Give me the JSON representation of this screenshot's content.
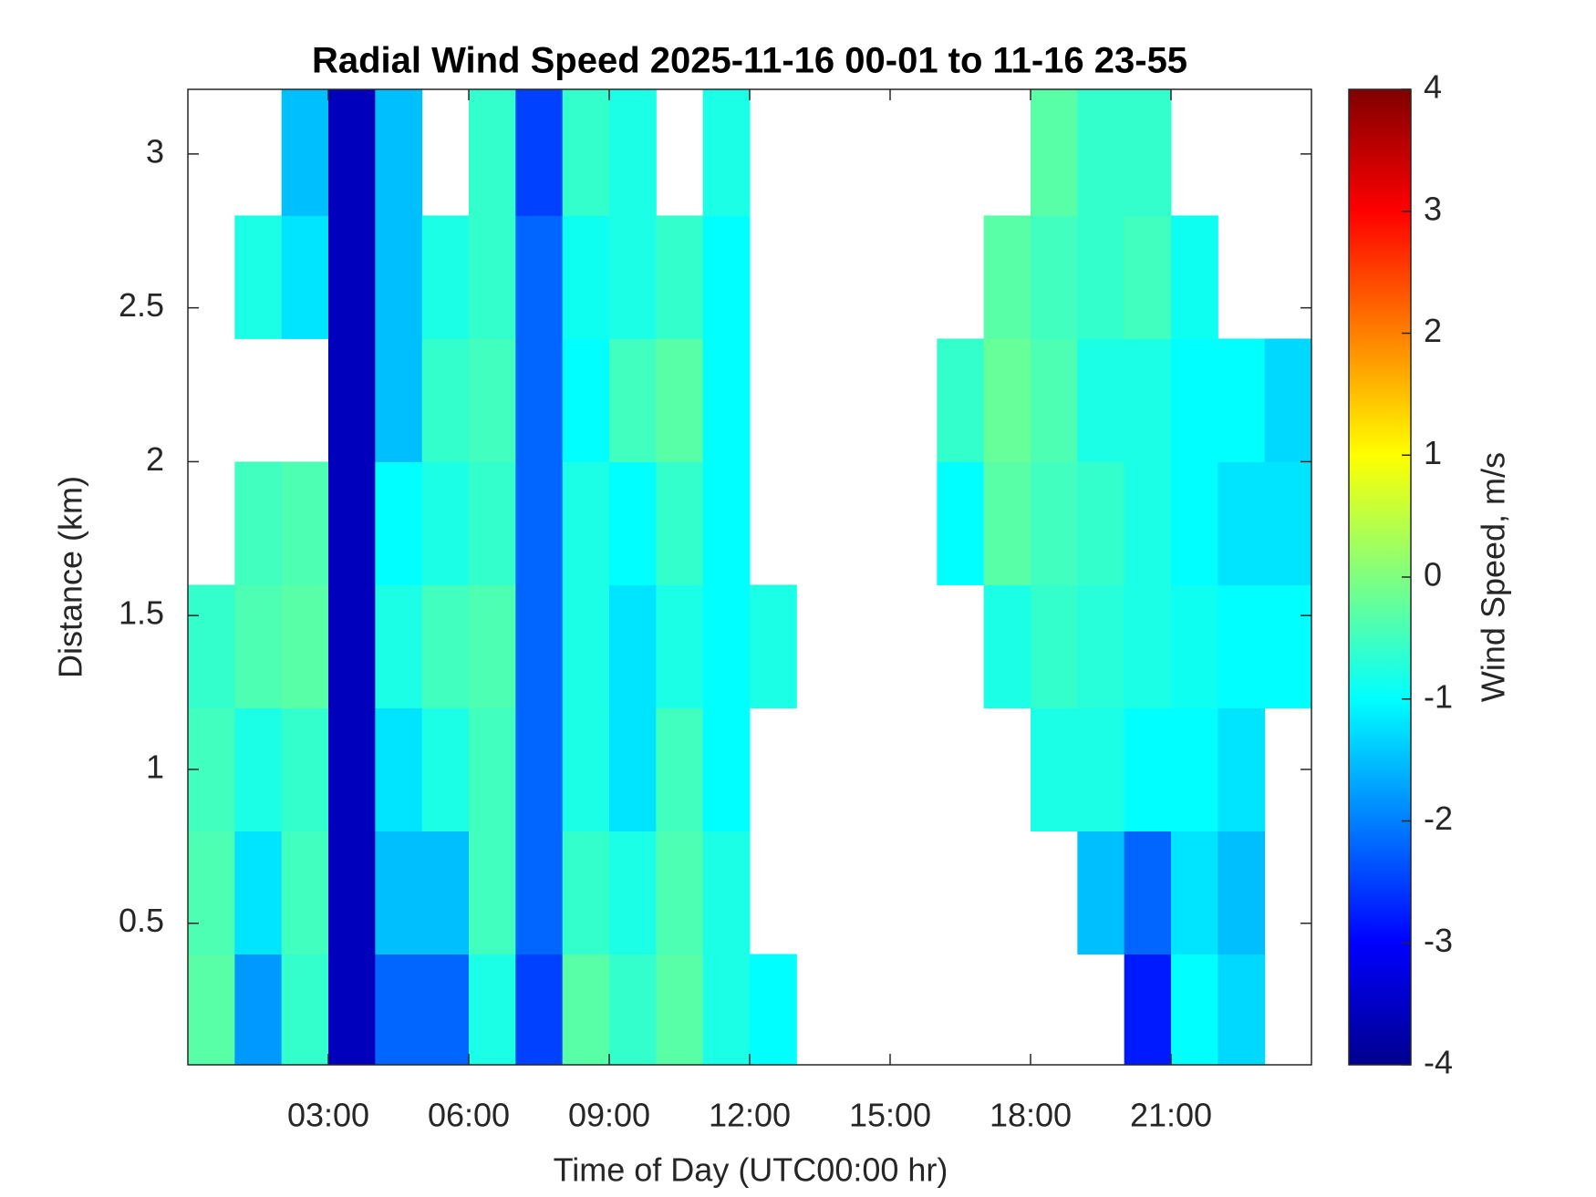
{
  "chart_data": {
    "type": "heatmap",
    "title": "Radial Wind Speed 2025-11-16 00-01 to 11-16 23-55",
    "x_label": "Time of Day (UTC00:00 hr)",
    "y_label": "Distance (km)",
    "colorbar_label": "Wind Speed, m/s",
    "x_edges": [
      0,
      1,
      2,
      3,
      4,
      5,
      6,
      7,
      8,
      9,
      10,
      11,
      12,
      13,
      14,
      15,
      16,
      17,
      18,
      19,
      20,
      21,
      22,
      23,
      24
    ],
    "y_edges": [
      0.04,
      0.4,
      0.8,
      1.2,
      1.6,
      2,
      2.4,
      2.8,
      3.21
    ],
    "z": [
      [
        -0.3,
        -1.8,
        -0.6,
        -3.6,
        -2.2,
        -2.2,
        -0.8,
        -2.5,
        -0.3,
        -0.6,
        -0.3,
        -0.8,
        -1,
        null,
        null,
        null,
        null,
        null,
        null,
        null,
        -2.8,
        -1,
        -1.3,
        null
      ],
      [
        -0.4,
        -1.2,
        -0.5,
        -3.6,
        -1.5,
        -1.5,
        -0.5,
        -2.2,
        -0.6,
        -0.8,
        -0.4,
        -0.8,
        null,
        null,
        null,
        null,
        null,
        null,
        null,
        -1.5,
        -2.2,
        -1.2,
        -1.5,
        null
      ],
      [
        -0.5,
        -0.8,
        -0.6,
        -3.6,
        -1.2,
        -0.8,
        -0.5,
        -2.2,
        -0.8,
        -1.2,
        -0.5,
        -1,
        null,
        null,
        null,
        null,
        null,
        null,
        -0.8,
        -0.8,
        -1,
        -1,
        -1.2,
        null
      ],
      [
        -0.6,
        -0.4,
        -0.3,
        -3.6,
        -0.8,
        -0.5,
        -0.4,
        -2.2,
        -0.8,
        -1.2,
        -0.8,
        -1,
        -0.8,
        null,
        null,
        null,
        null,
        -0.8,
        -0.6,
        -0.7,
        -0.8,
        -0.9,
        -1,
        -1
      ],
      [
        null,
        -0.5,
        -0.4,
        -3.6,
        -1,
        -0.8,
        -0.6,
        -2.2,
        -0.8,
        -1,
        -0.6,
        -1,
        null,
        null,
        null,
        null,
        -1,
        -0.3,
        -0.5,
        -0.6,
        -0.8,
        -1,
        -1.2,
        -1.2
      ],
      [
        null,
        null,
        null,
        -3.6,
        -1.5,
        -0.6,
        -0.5,
        -2.2,
        -1,
        -0.5,
        -0.3,
        -1,
        null,
        null,
        null,
        null,
        -0.6,
        -0.2,
        -0.4,
        -0.8,
        -0.8,
        -1,
        -1,
        -1.3
      ],
      [
        null,
        -0.8,
        -1.2,
        -3.6,
        -1.5,
        -0.8,
        -0.6,
        -2.2,
        -0.9,
        -0.8,
        -0.6,
        -1,
        null,
        null,
        null,
        null,
        null,
        -0.3,
        -0.5,
        -0.6,
        -0.5,
        -0.9,
        null,
        null
      ],
      [
        null,
        null,
        -1.5,
        -3.6,
        -1.5,
        null,
        -0.6,
        -2.5,
        -0.6,
        -0.8,
        null,
        -0.8,
        null,
        null,
        null,
        null,
        null,
        null,
        -0.3,
        -0.6,
        -0.6,
        null,
        null,
        null
      ]
    ],
    "xlim": [
      0,
      24
    ],
    "xticks": [
      {
        "value": 3,
        "label": "03:00"
      },
      {
        "value": 6,
        "label": "06:00"
      },
      {
        "value": 9,
        "label": "09:00"
      },
      {
        "value": 12,
        "label": "12:00"
      },
      {
        "value": 15,
        "label": "15:00"
      },
      {
        "value": 18,
        "label": "18:00"
      },
      {
        "value": 21,
        "label": "21:00"
      }
    ],
    "ylim": [
      0.04,
      3.21
    ],
    "yticks": [
      0.5,
      1,
      1.5,
      2,
      2.5,
      3
    ],
    "clim": [
      -4,
      4
    ],
    "cticks": [
      -4,
      -3,
      -2,
      -1,
      0,
      1,
      2,
      3,
      4
    ],
    "colormap": [
      [
        0,
        "#00008f"
      ],
      [
        0.125,
        "#0000ff"
      ],
      [
        0.375,
        "#00ffff"
      ],
      [
        0.625,
        "#ffff00"
      ],
      [
        0.875,
        "#ff0000"
      ],
      [
        1,
        "#800000"
      ]
    ]
  }
}
